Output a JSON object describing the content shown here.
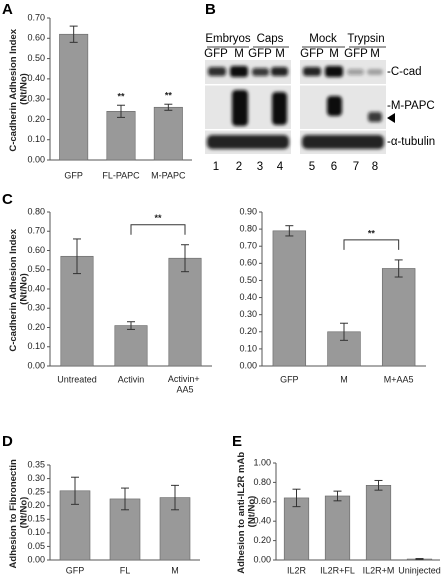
{
  "panels": [
    "A",
    "B",
    "C",
    "D",
    "E"
  ],
  "blot": {
    "groups": [
      "Embryos",
      "Caps",
      "Mock",
      "Trypsin"
    ],
    "lane_labels": [
      "GFP",
      "M",
      "GFP",
      "M",
      "GFP",
      "M",
      "GFP",
      "M"
    ],
    "rows": [
      "-C-cad",
      "-M-PAPC",
      "-α-tubulin"
    ],
    "lanes": [
      "1",
      "2",
      "3",
      "4",
      "5",
      "6",
      "7",
      "8"
    ]
  },
  "chart_data": [
    {
      "type": "bar",
      "ylabel": "C-cadherin Adhesion Index (Nt/No)",
      "categories": [
        "GFP",
        "FL-PAPC",
        "M-PAPC"
      ],
      "values": [
        0.62,
        0.24,
        0.26
      ],
      "errors": [
        0.04,
        0.03,
        0.015
      ],
      "color": "#999999",
      "ylim": [
        0,
        0.7
      ],
      "yticks": [
        {
          "value": 0,
          "label": "0.00"
        },
        {
          "value": 0.1,
          "label": "0.10"
        },
        {
          "value": 0.2,
          "label": "0.20"
        },
        {
          "value": 0.3,
          "label": "0.30"
        },
        {
          "value": 0.4,
          "label": "0.40"
        },
        {
          "value": 0.5,
          "label": "0.50"
        },
        {
          "value": 0.6,
          "label": "0.60"
        },
        {
          "value": 0.7,
          "label": "0.70"
        }
      ],
      "annotations": [
        {
          "text": "**",
          "between": [
            1,
            1
          ]
        },
        {
          "text": "**",
          "between": [
            2,
            2
          ]
        }
      ]
    },
    {
      "type": "bar",
      "ylabel": "C-cadherin Adhesion Index (Nt/No)",
      "categories": [
        "Untreated",
        "Activin",
        "Activin+ AA5"
      ],
      "values": [
        0.57,
        0.21,
        0.56
      ],
      "errors": [
        0.09,
        0.02,
        0.07
      ],
      "color": "#999999",
      "ylim": [
        0,
        0.8
      ],
      "yticks": [
        {
          "value": 0,
          "label": "0.00"
        },
        {
          "value": 0.1,
          "label": "0.10"
        },
        {
          "value": 0.2,
          "label": "0.20"
        },
        {
          "value": 0.3,
          "label": "0.30"
        },
        {
          "value": 0.4,
          "label": "0.40"
        },
        {
          "value": 0.5,
          "label": "0.50"
        },
        {
          "value": 0.6,
          "label": "0.60"
        },
        {
          "value": 0.7,
          "label": "0.70"
        },
        {
          "value": 0.8,
          "label": "0.80"
        }
      ],
      "annotations": [
        {
          "text": "**",
          "between": [
            1,
            2
          ]
        }
      ]
    },
    {
      "type": "bar",
      "categories": [
        "GFP",
        "M",
        "M+AA5"
      ],
      "values": [
        0.79,
        0.2,
        0.57
      ],
      "errors": [
        0.03,
        0.05,
        0.05
      ],
      "color": "#999999",
      "ylim": [
        0,
        0.9
      ],
      "yticks": [
        {
          "value": 0,
          "label": "0.00"
        },
        {
          "value": 0.1,
          "label": "0.10"
        },
        {
          "value": 0.2,
          "label": "0.20"
        },
        {
          "value": 0.3,
          "label": "0.30"
        },
        {
          "value": 0.4,
          "label": "0.40"
        },
        {
          "value": 0.5,
          "label": "0.50"
        },
        {
          "value": 0.6,
          "label": "0.60"
        },
        {
          "value": 0.7,
          "label": "0.70"
        },
        {
          "value": 0.8,
          "label": "0.80"
        },
        {
          "value": 0.9,
          "label": "0.90"
        }
      ],
      "annotations": [
        {
          "text": "**",
          "between": [
            1,
            2
          ]
        }
      ]
    },
    {
      "type": "bar",
      "ylabel": "Adhesion to Fibronectin (Nt/No)",
      "categories": [
        "GFP",
        "FL",
        "M"
      ],
      "values": [
        0.255,
        0.225,
        0.23
      ],
      "errors": [
        0.05,
        0.04,
        0.045
      ],
      "color": "#999999",
      "ylim": [
        0,
        0.35
      ],
      "yticks": [
        {
          "value": 0,
          "label": "0.00"
        },
        {
          "value": 0.05,
          "label": "0.05"
        },
        {
          "value": 0.1,
          "label": "0.10"
        },
        {
          "value": 0.15,
          "label": "0.15"
        },
        {
          "value": 0.2,
          "label": "0.20"
        },
        {
          "value": 0.25,
          "label": "0.25"
        },
        {
          "value": 0.3,
          "label": "0.30"
        },
        {
          "value": 0.35,
          "label": "0.35"
        }
      ]
    },
    {
      "type": "bar",
      "ylabel": "Adhesion to anti-IL2R mAb (Nt/No)",
      "categories": [
        "IL2R",
        "IL2R+FL",
        "IL2R+M",
        "Uninjected"
      ],
      "values": [
        0.64,
        0.66,
        0.77,
        0.01
      ],
      "errors": [
        0.09,
        0.05,
        0.05,
        0.005
      ],
      "color": "#999999",
      "ylim": [
        0,
        1
      ],
      "yticks": [
        {
          "value": 0,
          "label": "0.00"
        },
        {
          "value": 0.2,
          "label": "0.20"
        },
        {
          "value": 0.4,
          "label": "0.40"
        },
        {
          "value": 0.6,
          "label": "0.60"
        },
        {
          "value": 0.8,
          "label": "0.80"
        },
        {
          "value": 1,
          "label": "1.00"
        }
      ]
    }
  ]
}
